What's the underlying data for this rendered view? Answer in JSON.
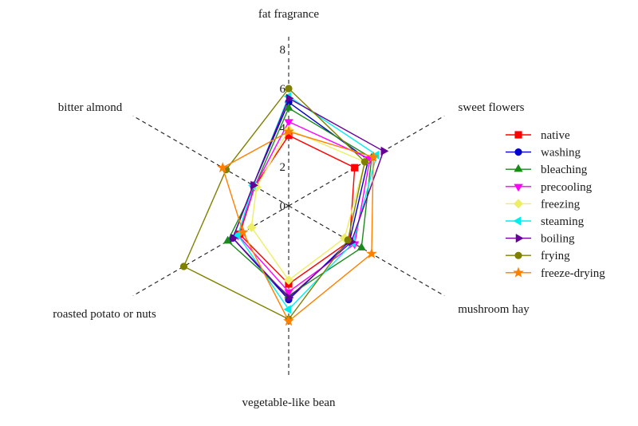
{
  "chart_data": {
    "type": "radar",
    "axes": [
      "fat fragrance",
      "sweet flowers",
      "mushroom hay",
      "vegetable-like bean",
      "roasted potato or nuts",
      "bitter almond"
    ],
    "rlim": [
      0,
      8
    ],
    "ticks": [
      0,
      2,
      4,
      6,
      8
    ],
    "tick_labels": [
      "0",
      "2",
      "4",
      "6",
      "8"
    ],
    "grid": false,
    "legend_position": "right",
    "series": [
      {
        "name": "native",
        "color": "#ff0000",
        "marker": "square",
        "values": [
          3.6,
          3.9,
          3.6,
          4.0,
          2.9,
          2.0
        ]
      },
      {
        "name": "washing",
        "color": "#0000cc",
        "marker": "circle",
        "values": [
          5.3,
          4.7,
          3.6,
          4.8,
          3.3,
          2.1
        ]
      },
      {
        "name": "bleaching",
        "color": "#1a8a1a",
        "marker": "triangle-up",
        "values": [
          5.0,
          4.9,
          4.3,
          4.6,
          3.6,
          2.0
        ]
      },
      {
        "name": "precooling",
        "color": "#ff00ff",
        "marker": "triangle-down",
        "values": [
          4.3,
          4.8,
          3.9,
          4.4,
          3.0,
          2.0
        ]
      },
      {
        "name": "freezing",
        "color": "#eeee66",
        "marker": "diamond",
        "values": [
          3.9,
          4.5,
          3.3,
          3.8,
          2.2,
          1.9
        ]
      },
      {
        "name": "steaming",
        "color": "#00eeee",
        "marker": "triangle-left",
        "values": [
          5.6,
          5.2,
          3.8,
          5.3,
          3.0,
          2.1
        ]
      },
      {
        "name": "boiling",
        "color": "#660099",
        "marker": "triangle-right",
        "values": [
          5.5,
          5.6,
          3.7,
          4.7,
          3.3,
          2.1
        ]
      },
      {
        "name": "frying",
        "color": "#808000",
        "marker": "circle",
        "values": [
          6.0,
          4.5,
          3.5,
          5.8,
          6.2,
          3.7
        ]
      },
      {
        "name": "freeze-drying",
        "color": "#ff8000",
        "marker": "star",
        "values": [
          3.8,
          5.0,
          4.9,
          5.9,
          2.7,
          3.9
        ]
      }
    ]
  }
}
